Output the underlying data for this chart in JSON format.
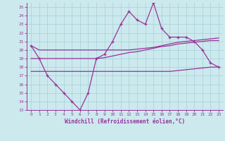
{
  "xlabel": "Windchill (Refroidissement éolien,°C)",
  "bg_color": "#cce9ee",
  "grid_color": "#aad4da",
  "line_color": "#993399",
  "x_data": [
    0,
    1,
    2,
    3,
    4,
    5,
    6,
    7,
    8,
    9,
    10,
    11,
    12,
    13,
    14,
    15,
    16,
    17,
    18,
    19,
    20,
    21,
    22,
    23
  ],
  "main_line": [
    20.5,
    19.0,
    17.0,
    16.0,
    15.0,
    14.0,
    13.0,
    15.0,
    19.0,
    19.5,
    21.0,
    23.0,
    24.5,
    23.5,
    23.0,
    25.5,
    22.5,
    21.5,
    21.5,
    21.5,
    21.0,
    20.0,
    18.5,
    18.0
  ],
  "upper_line": [
    20.5,
    20.0,
    20.0,
    20.0,
    20.0,
    20.0,
    20.0,
    20.0,
    20.0,
    20.0,
    20.0,
    20.0,
    20.0,
    20.1,
    20.2,
    20.3,
    20.5,
    20.7,
    20.9,
    21.0,
    21.1,
    21.2,
    21.3,
    21.4
  ],
  "mid_line": [
    19.0,
    19.0,
    19.0,
    19.0,
    19.0,
    19.0,
    19.0,
    19.0,
    19.0,
    19.1,
    19.3,
    19.5,
    19.7,
    19.8,
    20.0,
    20.2,
    20.4,
    20.5,
    20.7,
    20.8,
    20.9,
    21.0,
    21.1,
    21.1
  ],
  "lower_line": [
    17.5,
    17.5,
    17.5,
    17.5,
    17.5,
    17.5,
    17.5,
    17.5,
    17.5,
    17.5,
    17.5,
    17.5,
    17.5,
    17.5,
    17.5,
    17.5,
    17.5,
    17.5,
    17.6,
    17.7,
    17.8,
    17.9,
    18.0,
    18.0
  ],
  "ylim": [
    13,
    25.5
  ],
  "xlim": [
    -0.5,
    23.5
  ],
  "yticks": [
    13,
    14,
    15,
    16,
    17,
    18,
    19,
    20,
    21,
    22,
    23,
    24,
    25
  ],
  "xticks": [
    0,
    1,
    2,
    3,
    4,
    5,
    6,
    7,
    8,
    9,
    10,
    11,
    12,
    13,
    14,
    15,
    16,
    17,
    18,
    19,
    20,
    21,
    22,
    23
  ]
}
